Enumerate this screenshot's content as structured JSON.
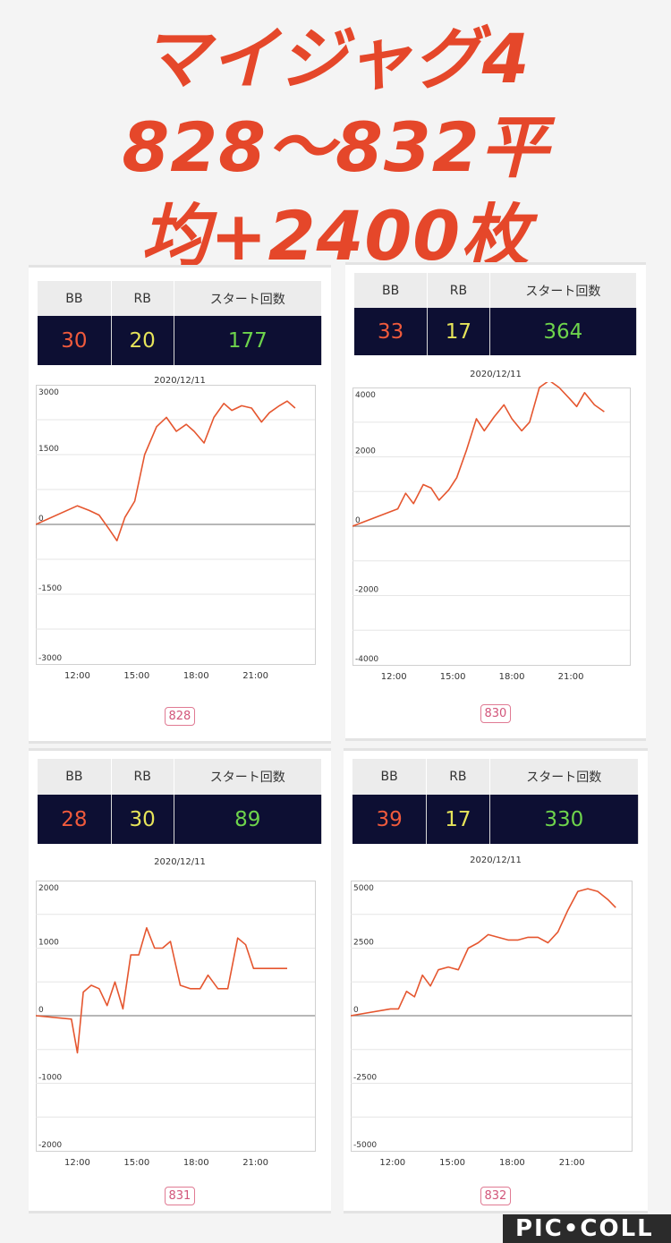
{
  "headline": {
    "line1": "マイジャグ4",
    "line2": "828〜832平",
    "line3": "均+2400枚"
  },
  "labels": {
    "bb": "BB",
    "rb": "RB",
    "start": "スタート回数"
  },
  "colors": {
    "bb": "#ef5a3c",
    "rb": "#e6e45a",
    "start": "#6ed44c",
    "line": "#e5562f",
    "grid": "#e6e6e6",
    "axis": "#8c8c8c"
  },
  "watermark": "PIC•COLL",
  "panels": [
    {
      "bb": "30",
      "rb": "20",
      "start": "177",
      "date": "2020/12/11",
      "machine": "828",
      "chart_data": {
        "type": "line",
        "ylim": [
          -3000,
          3000
        ],
        "y_ticks": [
          "3000",
          "1500",
          "0",
          "-1500",
          "-3000"
        ],
        "x_ticks": [
          "12:00",
          "15:00",
          "18:00",
          "21:00"
        ],
        "x": [
          9.9,
          12.0,
          12.6,
          13.1,
          13.6,
          14.0,
          14.4,
          14.9,
          15.4,
          16.0,
          16.5,
          17.0,
          17.5,
          17.9,
          18.4,
          18.9,
          19.4,
          19.8,
          20.3,
          20.8,
          21.3,
          21.7,
          22.2,
          22.6,
          23.0
        ],
        "y": [
          0,
          400,
          300,
          200,
          -100,
          -350,
          150,
          500,
          1500,
          2100,
          2300,
          2000,
          2150,
          2000,
          1750,
          2300,
          2600,
          2450,
          2550,
          2500,
          2200,
          2400,
          2550,
          2650,
          2500
        ]
      }
    },
    {
      "bb": "33",
      "rb": "17",
      "start": "364",
      "date": "2020/12/11",
      "machine": "830",
      "chart_data": {
        "type": "line",
        "ylim": [
          -4000,
          4000
        ],
        "y_ticks": [
          "4000",
          "2000",
          "0",
          "-2000",
          "-4000"
        ],
        "x_ticks": [
          "12:00",
          "15:00",
          "18:00",
          "21:00"
        ],
        "x": [
          9.9,
          12.2,
          12.6,
          13.0,
          13.5,
          13.9,
          14.3,
          14.8,
          15.2,
          15.7,
          16.2,
          16.6,
          17.1,
          17.6,
          18.0,
          18.5,
          18.9,
          19.4,
          19.9,
          20.4,
          20.9,
          21.3,
          21.7,
          22.2,
          22.7
        ],
        "y": [
          0,
          500,
          950,
          650,
          1200,
          1100,
          750,
          1050,
          1400,
          2200,
          3100,
          2750,
          3150,
          3500,
          3100,
          2750,
          3000,
          4000,
          4200,
          4000,
          3700,
          3450,
          3850,
          3500,
          3300
        ]
      }
    },
    {
      "bb": "28",
      "rb": "30",
      "start": "89",
      "date": "2020/12/11",
      "machine": "831",
      "chart_data": {
        "type": "line",
        "ylim": [
          -2000,
          2000
        ],
        "y_ticks": [
          "2000",
          "1000",
          "0",
          "-1000",
          "-2000"
        ],
        "x_ticks": [
          "12:00",
          "15:00",
          "18:00",
          "21:00"
        ],
        "x": [
          9.9,
          11.7,
          12.0,
          12.3,
          12.7,
          13.1,
          13.5,
          13.9,
          14.3,
          14.7,
          15.1,
          15.5,
          15.9,
          16.3,
          16.7,
          17.2,
          17.7,
          18.2,
          18.6,
          19.1,
          19.6,
          20.1,
          20.5,
          20.9,
          21.3,
          21.7,
          22.1,
          22.6
        ],
        "y": [
          0,
          -50,
          -550,
          350,
          450,
          400,
          150,
          500,
          100,
          900,
          900,
          1300,
          1000,
          1000,
          1100,
          450,
          400,
          400,
          600,
          400,
          400,
          1150,
          1050,
          700,
          700,
          700,
          700,
          700
        ]
      }
    },
    {
      "bb": "39",
      "rb": "17",
      "start": "330",
      "date": "2020/12/11",
      "machine": "832",
      "chart_data": {
        "type": "line",
        "ylim": [
          -5000,
          5000
        ],
        "y_ticks": [
          "5000",
          "2500",
          "0",
          "-2500",
          "-5000"
        ],
        "x_ticks": [
          "12:00",
          "15:00",
          "18:00",
          "21:00"
        ],
        "x": [
          9.9,
          11.9,
          12.3,
          12.7,
          13.1,
          13.5,
          13.9,
          14.3,
          14.8,
          15.3,
          15.8,
          16.3,
          16.8,
          17.3,
          17.8,
          18.3,
          18.8,
          19.3,
          19.8,
          20.3,
          20.8,
          21.3,
          21.8,
          22.3,
          22.8,
          23.2
        ],
        "y": [
          0,
          250,
          250,
          900,
          700,
          1500,
          1100,
          1700,
          1800,
          1700,
          2500,
          2700,
          3000,
          2900,
          2800,
          2800,
          2900,
          2900,
          2700,
          3100,
          3900,
          4600,
          4700,
          4600,
          4300,
          4000
        ]
      }
    }
  ]
}
